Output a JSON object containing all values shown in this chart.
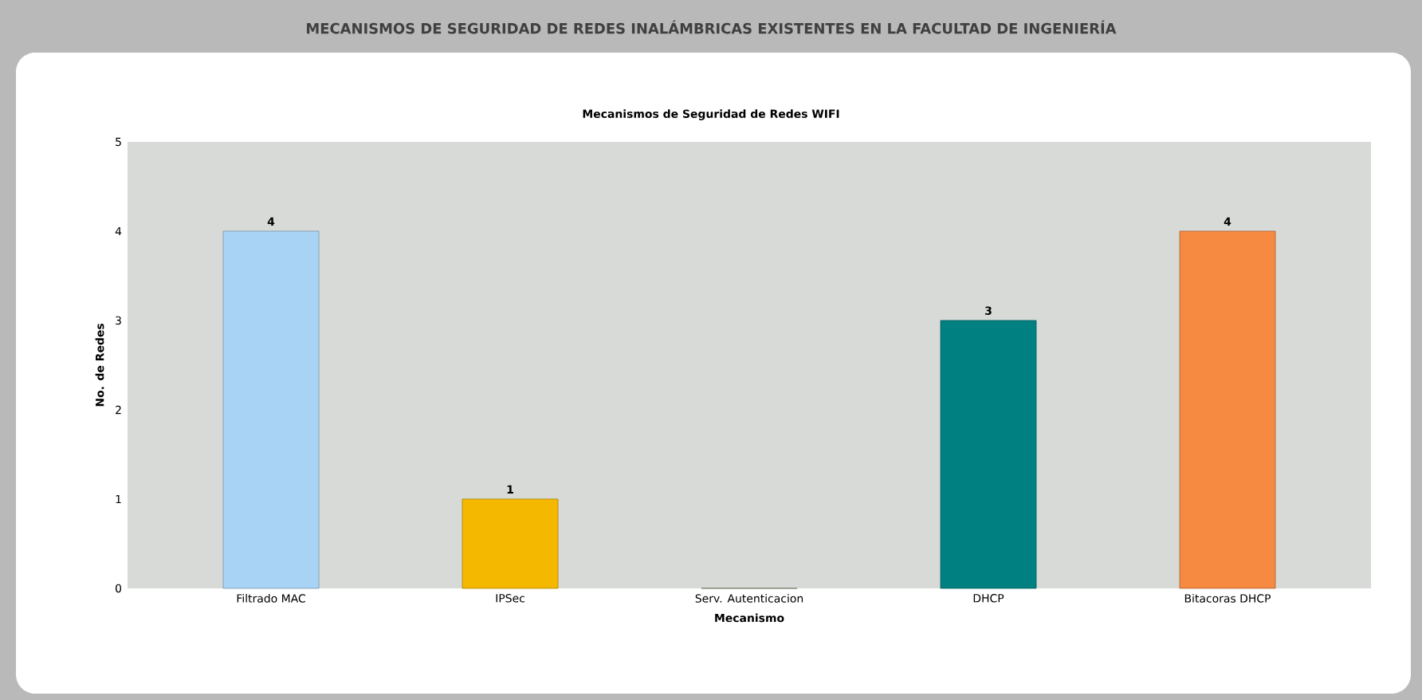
{
  "chart_data": {
    "type": "bar",
    "title": "MECANISMOS DE SEGURIDAD DE REDES INALÁMBRICAS EXISTENTES EN LA FACULTAD DE INGENIERÍA",
    "subtitle": "Mecanismos de Seguridad de Redes WIFI",
    "xlabel": "Mecanismo",
    "ylabel": "No. de Redes",
    "categories": [
      "Filtrado MAC",
      "IPSec",
      "Serv. Autenticacion",
      "DHCP",
      "Bitacoras DHCP"
    ],
    "values": [
      4,
      1,
      0,
      3,
      4
    ],
    "value_labels": [
      "4",
      "1",
      null,
      "3",
      "4"
    ],
    "colors": [
      "#a9d3f5",
      "#f5b800",
      "#9aa88a",
      "#008080",
      "#f58a40"
    ],
    "ylim": [
      0,
      5
    ],
    "yticks": [
      0,
      1,
      2,
      3,
      4,
      5
    ]
  }
}
